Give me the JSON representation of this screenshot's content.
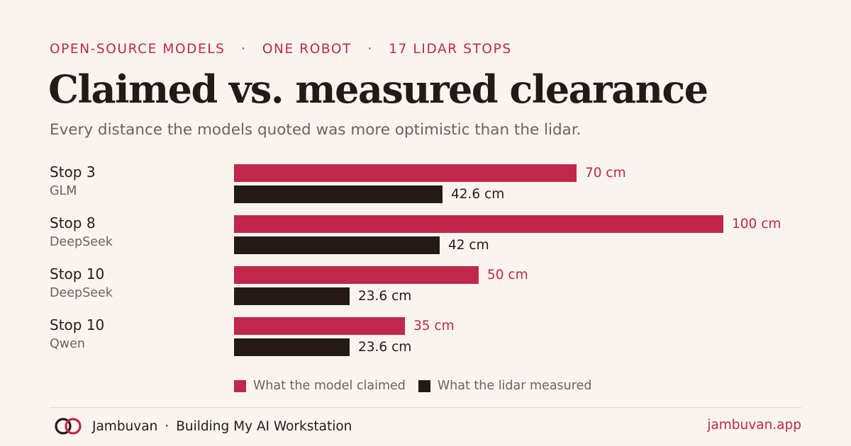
{
  "header": {
    "eyebrow_parts": [
      "OPEN-SOURCE MODELS",
      "ONE ROBOT",
      "17 LIDAR STOPS"
    ],
    "separator": "·"
  },
  "chart_data": {
    "type": "bar",
    "orientation": "horizontal",
    "title": "Claimed vs. measured clearance",
    "subtitle": "Every distance the models quoted was more optimistic than the lidar.",
    "unit": "cm",
    "xlim": [
      0,
      100
    ],
    "grid": false,
    "legend_position": "bottom-left",
    "categories": [
      {
        "stop": "Stop 3",
        "model": "GLM"
      },
      {
        "stop": "Stop 8",
        "model": "DeepSeek"
      },
      {
        "stop": "Stop 10",
        "model": "DeepSeek"
      },
      {
        "stop": "Stop 10",
        "model": "Qwen"
      }
    ],
    "series": [
      {
        "name": "What the model claimed",
        "key": "claimed",
        "color": "#c0274a",
        "values": [
          70,
          100,
          50,
          35
        ],
        "labels": [
          "70 cm",
          "100 cm",
          "50 cm",
          "35 cm"
        ]
      },
      {
        "name": "What the lidar measured",
        "key": "measured",
        "color": "#231a17",
        "values": [
          42.6,
          42,
          23.6,
          23.6
        ],
        "labels": [
          "42.6 cm",
          "42 cm",
          "23.6 cm",
          "23.6 cm"
        ]
      }
    ]
  },
  "footer": {
    "brand": "Jambuvan",
    "separator": "·",
    "series_name": "Building My AI Workstation",
    "site": "jambuvan.app",
    "logo_icon": "interlinked-rings-icon"
  }
}
